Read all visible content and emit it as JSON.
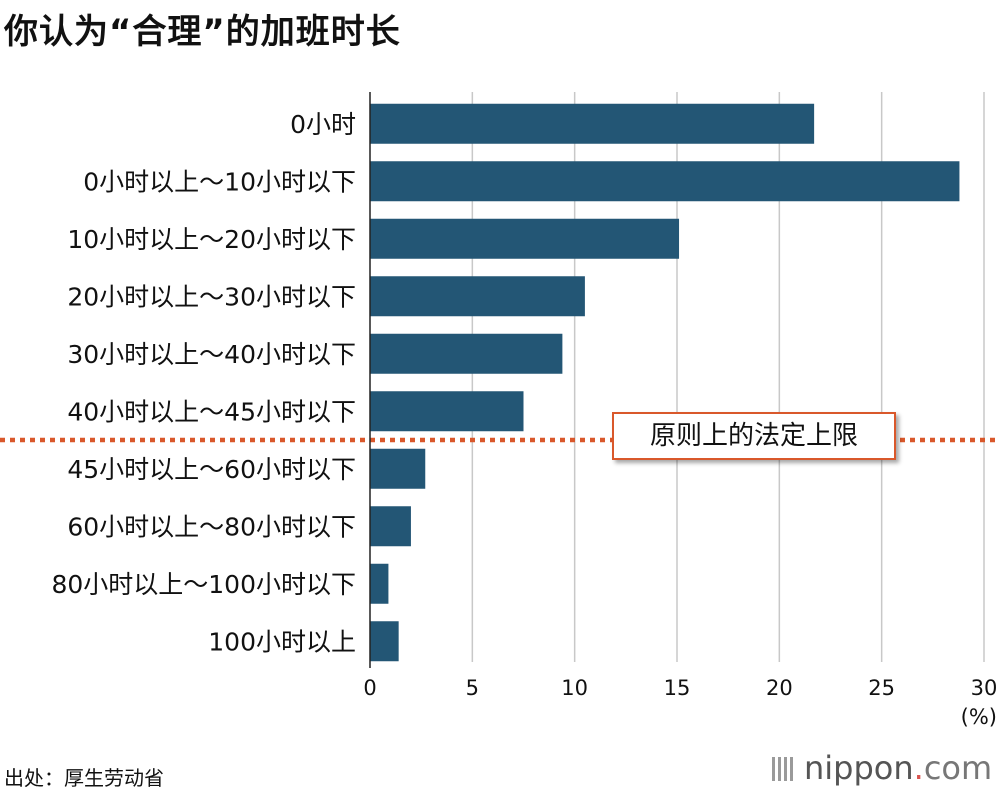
{
  "title": "你认为“合理”的加班时长",
  "source": "出处：厚生劳动省",
  "logo": {
    "name": "nippon",
    "dot": ".",
    "suffix": "com"
  },
  "colors": {
    "bar": "#235675",
    "grid": "#c8c8c8",
    "limit_line": "#d9582b",
    "text": "#111111"
  },
  "chart_data": {
    "type": "bar",
    "orientation": "horizontal",
    "title": "你认为“合理”的加班时长",
    "categories": [
      "0小时",
      "0小时以上～10小时以下",
      "10小时以上～20小时以下",
      "20小时以上～30小时以下",
      "30小时以上～40小时以下",
      "40小时以上～45小时以下",
      "45小时以上～60小时以下",
      "60小时以上～80小时以下",
      "80小时以上～100小时以下",
      "100小时以上"
    ],
    "values": [
      21.7,
      28.8,
      15.1,
      10.5,
      9.4,
      7.5,
      2.7,
      2.0,
      0.9,
      1.4
    ],
    "xlim": [
      0,
      30
    ],
    "xticks": [
      0,
      5,
      10,
      15,
      20,
      25,
      30
    ],
    "unit_label": "(%)",
    "grid": true,
    "annotation": {
      "label": "原则上的法定上限",
      "between_categories": [
        "40小时以上～45小时以下",
        "45小时以上～60小时以下"
      ]
    }
  }
}
